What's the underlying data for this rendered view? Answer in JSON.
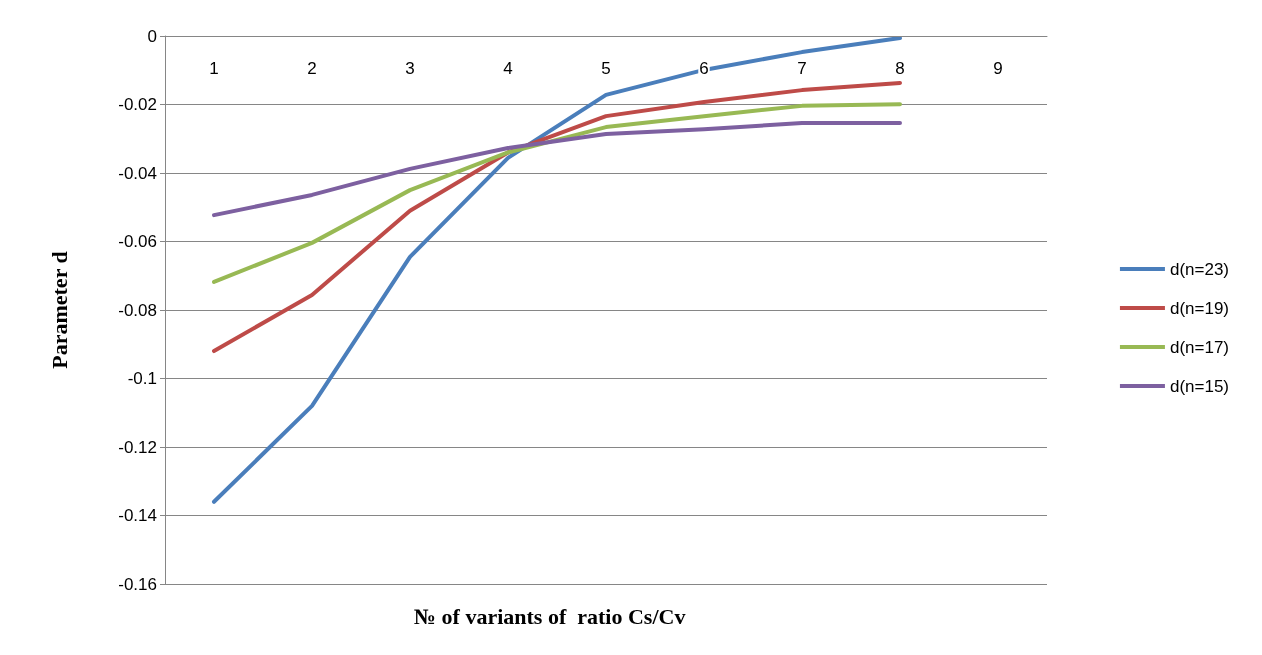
{
  "chart_data": {
    "type": "line",
    "xlabel": "№ of variants of  ratio Cs/Cv",
    "ylabel": "Parameter d",
    "categories": [
      "1",
      "2",
      "3",
      "4",
      "5",
      "6",
      "7",
      "8",
      "9"
    ],
    "series": [
      {
        "name": "d(n=23)",
        "color": "#4a7ebb",
        "values": [
          -0.136,
          -0.108,
          -0.0645,
          -0.0356,
          -0.0172,
          -0.0099,
          -0.0047,
          -0.0006,
          null
        ]
      },
      {
        "name": "d(n=19)",
        "color": "#be4b48",
        "values": [
          -0.092,
          -0.0756,
          -0.051,
          -0.034,
          -0.0234,
          -0.0193,
          -0.0158,
          -0.0137,
          null
        ]
      },
      {
        "name": "d(n=17)",
        "color": "#98b954",
        "values": [
          -0.0718,
          -0.0604,
          -0.045,
          -0.034,
          -0.0266,
          -0.0234,
          -0.0204,
          -0.0199,
          null
        ]
      },
      {
        "name": "d(n=15)",
        "color": "#7d60a0",
        "values": [
          -0.0523,
          -0.0464,
          -0.0388,
          -0.0327,
          -0.0286,
          -0.0272,
          -0.0254,
          -0.0254,
          null
        ]
      }
    ],
    "ylim": [
      -0.16,
      0
    ],
    "yticks": [
      0,
      -0.02,
      -0.04,
      -0.06,
      -0.08,
      -0.1,
      -0.12,
      -0.14,
      -0.16
    ],
    "grid": "y",
    "legend": "right",
    "marker": "none",
    "line_style": "solid"
  }
}
